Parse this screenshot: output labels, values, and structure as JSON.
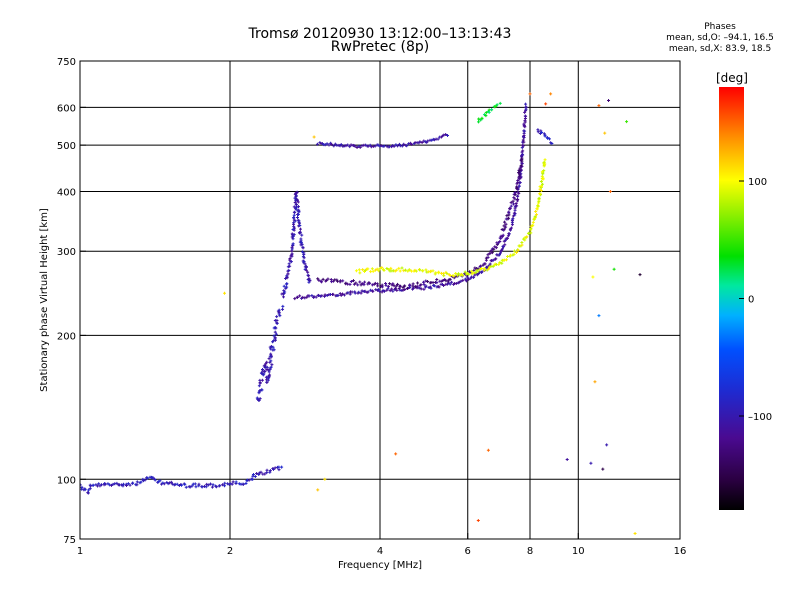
{
  "header": {
    "title": "Tromsø 20120930 13:12:00–13:13:43",
    "subtitle": "RwPretec (8p)"
  },
  "phases_box": {
    "heading": "Phases",
    "line_o": "mean, sd,O: –94.1, 16.5",
    "line_x": "mean, sd,X: 83.9, 18.5"
  },
  "chart_data": {
    "type": "scatter",
    "title": "Tromsø 20120930 13:12:00–13:13:43",
    "subtitle": "RwPretec (8p)",
    "xlabel": "Frequency [MHz]",
    "ylabel": "Stationary phase Virtual Height [km]",
    "x_scale": "log",
    "y_scale": "log",
    "xlim": [
      1,
      16
    ],
    "ylim": [
      75,
      750
    ],
    "x_ticks": [
      1,
      2,
      4,
      6,
      8,
      10,
      16
    ],
    "x_tick_labels": [
      "1",
      "2",
      "4",
      "6",
      "8",
      "10",
      "16"
    ],
    "y_ticks": [
      75,
      100,
      200,
      300,
      400,
      500,
      600,
      750
    ],
    "y_tick_labels": [
      "75",
      "100",
      "200",
      "300",
      "400",
      "500",
      "600",
      "750"
    ],
    "grid": true,
    "colorbar": {
      "label": "[deg]",
      "range": [
        -180,
        180
      ],
      "ticks": [
        100,
        0,
        -100
      ],
      "tick_labels": [
        "100",
        "0",
        "–100"
      ]
    },
    "series": [
      {
        "kind": "E-layer trace",
        "color_phase": -95,
        "spread": 0.6,
        "points": [
          [
            1.0,
            97
          ],
          [
            1.02,
            95
          ],
          [
            1.04,
            94
          ],
          [
            1.05,
            97
          ],
          [
            1.3,
            98
          ],
          [
            1.38,
            101
          ],
          [
            1.42,
            99
          ],
          [
            1.5,
            98
          ],
          [
            1.6,
            97
          ],
          [
            1.7,
            97
          ],
          [
            1.8,
            97
          ],
          [
            1.9,
            97
          ],
          [
            2.0,
            98
          ],
          [
            2.05,
            98
          ],
          [
            2.15,
            98
          ],
          [
            2.25,
            102
          ],
          [
            2.4,
            104
          ],
          [
            2.55,
            106
          ]
        ]
      },
      {
        "kind": "F1 cusp low",
        "color_phase": -100,
        "spread": 1.2,
        "points": [
          [
            2.28,
            145
          ],
          [
            2.3,
            155
          ],
          [
            2.32,
            165
          ],
          [
            2.35,
            175
          ],
          [
            2.38,
            160
          ],
          [
            2.4,
            170
          ],
          [
            2.42,
            185
          ],
          [
            2.45,
            195
          ],
          [
            2.47,
            210
          ],
          [
            2.5,
            222
          ],
          [
            2.55,
            232
          ]
        ]
      },
      {
        "kind": "F1 cusp vertical",
        "color_phase": -100,
        "spread": 0.8,
        "points": [
          [
            2.55,
            240
          ],
          [
            2.6,
            260
          ],
          [
            2.65,
            290
          ],
          [
            2.68,
            320
          ],
          [
            2.7,
            360
          ],
          [
            2.72,
            400
          ],
          [
            2.75,
            340
          ],
          [
            2.8,
            300
          ],
          [
            2.85,
            270
          ],
          [
            2.9,
            255
          ]
        ]
      },
      {
        "kind": "F2 O-mode",
        "color_phase": -110,
        "spread": 0.5,
        "points": [
          [
            2.7,
            240
          ],
          [
            3.0,
            242
          ],
          [
            3.5,
            245
          ],
          [
            4.0,
            248
          ],
          [
            4.5,
            250
          ],
          [
            5.0,
            252
          ],
          [
            5.5,
            256
          ],
          [
            6.0,
            262
          ],
          [
            6.5,
            275
          ],
          [
            7.0,
            300
          ],
          [
            7.3,
            330
          ],
          [
            7.5,
            370
          ],
          [
            7.65,
            430
          ],
          [
            7.75,
            500
          ],
          [
            7.8,
            560
          ],
          [
            7.85,
            610
          ]
        ]
      },
      {
        "kind": "F2 O-mode upper band",
        "color_phase": -125,
        "spread": 0.7,
        "points": [
          [
            3.0,
            262
          ],
          [
            3.5,
            258
          ],
          [
            4.0,
            255
          ],
          [
            4.5,
            253
          ],
          [
            5.0,
            258
          ],
          [
            5.5,
            262
          ],
          [
            6.0,
            268
          ],
          [
            6.5,
            285
          ],
          [
            7.0,
            320
          ],
          [
            7.5,
            400
          ],
          [
            7.7,
            470
          ]
        ]
      },
      {
        "kind": "F2 X-mode",
        "color_phase": 95,
        "spread": 0.6,
        "points": [
          [
            3.6,
            272
          ],
          [
            4.0,
            275
          ],
          [
            4.5,
            275
          ],
          [
            5.0,
            272
          ],
          [
            5.5,
            268
          ],
          [
            6.0,
            270
          ],
          [
            6.5,
            275
          ],
          [
            7.0,
            285
          ],
          [
            7.5,
            300
          ],
          [
            8.0,
            330
          ],
          [
            8.3,
            370
          ],
          [
            8.45,
            420
          ],
          [
            8.55,
            470
          ]
        ]
      },
      {
        "kind": "Upper trace ~500 km",
        "color_phase": -105,
        "spread": 0.4,
        "points": [
          [
            3.0,
            505
          ],
          [
            3.3,
            500
          ],
          [
            3.6,
            497
          ],
          [
            4.0,
            498
          ],
          [
            4.5,
            500
          ],
          [
            5.0,
            510
          ],
          [
            5.3,
            520
          ],
          [
            5.5,
            528
          ]
        ]
      },
      {
        "kind": "Upper trace ~580 km",
        "color_phase": 30,
        "spread": 0.6,
        "points": [
          [
            6.3,
            560
          ],
          [
            6.5,
            580
          ],
          [
            6.8,
            600
          ],
          [
            7.0,
            610
          ]
        ]
      },
      {
        "kind": "Upper trace ~500 km right",
        "color_phase": -90,
        "spread": 0.6,
        "points": [
          [
            8.3,
            540
          ],
          [
            8.6,
            520
          ],
          [
            8.9,
            505
          ]
        ]
      }
    ],
    "scatter_isolated": [
      [
        2.95,
        520,
        120
      ],
      [
        1.95,
        245,
        110
      ],
      [
        4.3,
        113,
        150
      ],
      [
        6.3,
        82,
        160
      ],
      [
        6.6,
        115,
        150
      ],
      [
        3.0,
        95,
        120
      ],
      [
        3.1,
        100,
        110
      ],
      [
        8.0,
        640,
        150
      ],
      [
        8.6,
        610,
        160
      ],
      [
        8.8,
        640,
        140
      ],
      [
        9.5,
        110,
        -110
      ],
      [
        10.6,
        108,
        -100
      ],
      [
        11.0,
        605,
        150
      ],
      [
        11.5,
        620,
        -130
      ],
      [
        11.3,
        530,
        120
      ],
      [
        11.6,
        400,
        150
      ],
      [
        11.8,
        275,
        40
      ],
      [
        12.5,
        560,
        50
      ],
      [
        13.3,
        268,
        -160
      ],
      [
        11.4,
        118,
        -100
      ],
      [
        10.8,
        160,
        130
      ],
      [
        10.7,
        265,
        100
      ],
      [
        11.0,
        220,
        -30
      ],
      [
        11.2,
        105,
        -150
      ],
      [
        13.0,
        77,
        110
      ]
    ]
  }
}
